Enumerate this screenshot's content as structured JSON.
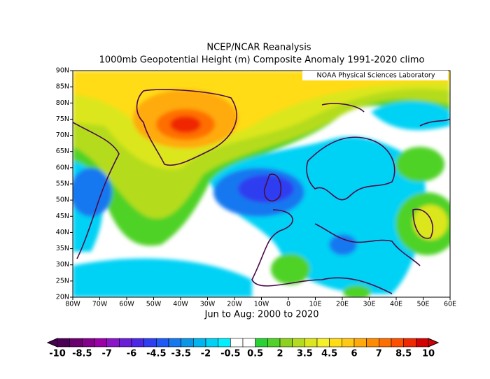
{
  "header": {
    "title": "NCEP/NCAR Reanalysis",
    "subtitle": "1000mb Geopotential Height (m) Composite Anomaly 1991-2020 climo"
  },
  "credit": "NOAA Physical Sciences Laboratory",
  "map": {
    "lat_labels": [
      "90N",
      "85N",
      "80N",
      "75N",
      "70N",
      "65N",
      "60N",
      "55N",
      "50N",
      "45N",
      "40N",
      "35N",
      "30N",
      "25N",
      "20N"
    ],
    "lon_labels": [
      "80W",
      "70W",
      "60W",
      "50W",
      "40W",
      "30W",
      "20W",
      "10W",
      "0",
      "10E",
      "20E",
      "30E",
      "40E",
      "50E",
      "60E"
    ],
    "period": "Jun to Aug: 2000 to 2020"
  },
  "colorbar": {
    "labels": [
      -10,
      -8.5,
      -7,
      -6,
      -4.5,
      -3.5,
      -2,
      -0.5,
      0.5,
      2,
      3.5,
      4.5,
      6,
      7,
      8.5,
      10
    ],
    "colors": [
      "#4b0055",
      "#6a006e",
      "#82008a",
      "#9b00a8",
      "#8c14c8",
      "#6a1ed8",
      "#4b28e6",
      "#2e3ef0",
      "#1e5af5",
      "#1478f0",
      "#0a96e6",
      "#00b4f0",
      "#00d2f5",
      "#00f0ff",
      "#ffffff",
      "#ffffff",
      "#28d232",
      "#50d228",
      "#8cd21e",
      "#b4dc1e",
      "#dce61e",
      "#f5f028",
      "#ffdc14",
      "#ffc814",
      "#ffaa0a",
      "#ff8c00",
      "#ff6e00",
      "#ff5000",
      "#f02800",
      "#d20000"
    ]
  }
}
